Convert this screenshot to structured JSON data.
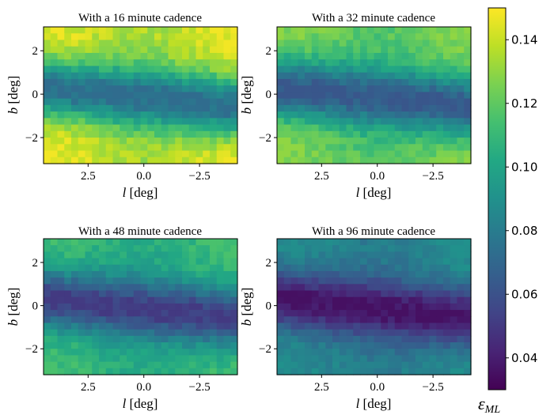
{
  "chart_data": [
    {
      "type": "heatmap",
      "title": "With a 16 minute cadence",
      "xlabel_var": "l",
      "xlabel_unit": "[deg]",
      "ylabel_var": "b",
      "ylabel_unit": "[deg]",
      "xlim": [
        4.5,
        -4.2
      ],
      "ylim": [
        -3.2,
        3.1
      ],
      "xticks": [
        2.5,
        0.0,
        -2.5
      ],
      "xtick_labels": [
        "2.5",
        "0.0",
        "−2.5"
      ],
      "yticks": [
        2,
        0,
        -2
      ],
      "ytick_labels": [
        "2",
        "0",
        "−2"
      ],
      "show_y_axis": true,
      "emin": 0.072,
      "emax": 0.148
    },
    {
      "type": "heatmap",
      "title": "With a 32 minute cadence",
      "xlabel_var": "l",
      "xlabel_unit": "[deg]",
      "ylabel_var": "b",
      "ylabel_unit": "[deg]",
      "xlim": [
        4.5,
        -4.2
      ],
      "ylim": [
        -3.2,
        3.1
      ],
      "xticks": [
        2.5,
        0.0,
        -2.5
      ],
      "xtick_labels": [
        "2.5",
        "0.0",
        "−2.5"
      ],
      "yticks": [
        2,
        0,
        -2
      ],
      "ytick_labels": [
        "2",
        "0",
        "−2"
      ],
      "show_y_axis": true,
      "emin": 0.062,
      "emax": 0.13
    },
    {
      "type": "heatmap",
      "title": "With a 48 minute cadence",
      "xlabel_var": "l",
      "xlabel_unit": "[deg]",
      "ylabel_var": "b",
      "ylabel_unit": "[deg]",
      "xlim": [
        4.5,
        -4.2
      ],
      "ylim": [
        -3.2,
        3.1
      ],
      "xticks": [
        2.5,
        0.0,
        -2.5
      ],
      "xtick_labels": [
        "2.5",
        "0.0",
        "−2.5"
      ],
      "yticks": [
        2,
        0,
        -2
      ],
      "ytick_labels": [
        "2",
        "0",
        "−2"
      ],
      "show_y_axis": true,
      "emin": 0.05,
      "emax": 0.115
    },
    {
      "type": "heatmap",
      "title": "With a 96 minute cadence",
      "xlabel_var": "l",
      "xlabel_unit": "[deg]",
      "ylabel_var": "b",
      "ylabel_unit": "[deg]",
      "xlim": [
        4.5,
        -4.2
      ],
      "ylim": [
        -3.2,
        3.1
      ],
      "xticks": [
        2.5,
        0.0,
        -2.5
      ],
      "xtick_labels": [
        "2.5",
        "0.0",
        "−2.5"
      ],
      "yticks": [
        2,
        0,
        -2
      ],
      "ytick_labels": [
        "2",
        "0",
        "−2"
      ],
      "show_y_axis": true,
      "emin": 0.035,
      "emax": 0.09
    }
  ],
  "colorbar": {
    "colormap": "viridis",
    "vmin": 0.03,
    "vmax": 0.15,
    "ticks": [
      0.04,
      0.06,
      0.08,
      0.1,
      0.12,
      0.14
    ],
    "tick_labels": [
      "0.04",
      "0.06",
      "0.08",
      "0.10",
      "0.12",
      "0.14"
    ],
    "label_main": "ε",
    "label_sub": "ML"
  }
}
